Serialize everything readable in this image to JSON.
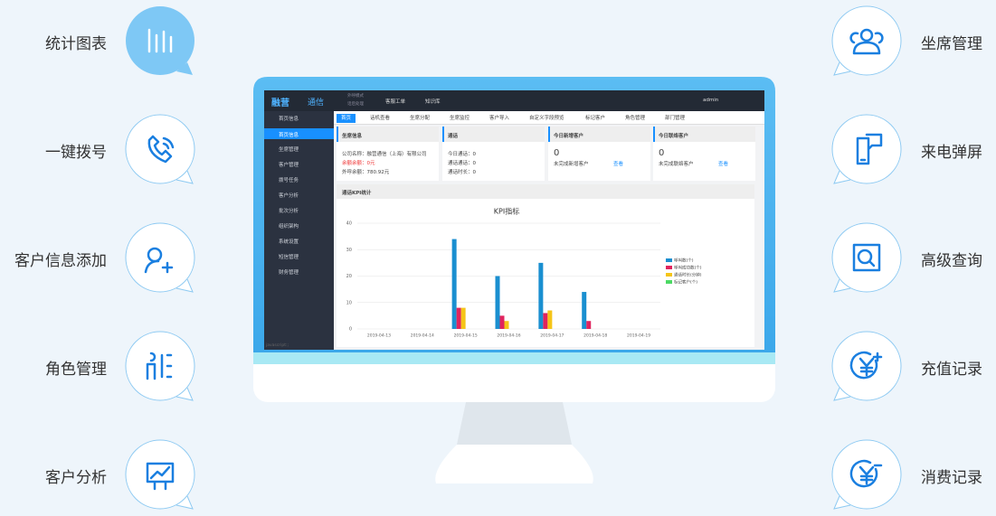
{
  "features_left": [
    "统计图表",
    "一键拨号",
    "客户信息添加",
    "角色管理",
    "客户分析"
  ],
  "features_right": [
    "坐席管理",
    "来电弹屏",
    "高级查询",
    "充值记录",
    "消费记录"
  ],
  "app": {
    "logo": "融营",
    "logo2": "通信",
    "mode": [
      "外呼模式",
      "话后处理"
    ],
    "nav": [
      "客服工单",
      "知识库"
    ],
    "user": "admin",
    "sidebar": [
      "首页信息",
      "坐席管理",
      "客户管理",
      "拨号任务",
      "客户分析",
      "批次分析",
      "组织架构",
      "系统设置",
      "短信管理",
      "财务管理"
    ],
    "submenu": "首页信息",
    "tabs": [
      "首页",
      "话机查看",
      "坐席分配",
      "坐席监控",
      "客户导入",
      "自定义字段预览",
      "标记客户",
      "角色管理",
      "部门管理"
    ],
    "cards": [
      {
        "title": "坐席信息",
        "lines": [
          "公司名称：融营通信（上海）有限公司",
          "余额余额：0元",
          "外呼余额：780.92元"
        ]
      },
      {
        "title": "通话",
        "lines": [
          "今日通话：0",
          "通话通话：0",
          "通话时长：0"
        ]
      },
      {
        "title": "今日新增客户",
        "value": 0,
        "note": "未完成新增客户",
        "link": "查看"
      },
      {
        "title": "今日联络客户",
        "value": 0,
        "note": "未完成联络客户",
        "link": "查看"
      }
    ],
    "section": "通话KPI统计",
    "footer": "javascript:;"
  },
  "chart_data": {
    "type": "bar",
    "title": "KPI指标",
    "categories": [
      "2019-04-13",
      "2019-04-14",
      "2019-04-15",
      "2019-04-16",
      "2019-04-17",
      "2019-04-18",
      "2019-04-19"
    ],
    "series": [
      {
        "name": "呼叫数(个)",
        "color": "#1a8fd0",
        "values": [
          0,
          0,
          34,
          20,
          25,
          14,
          0
        ]
      },
      {
        "name": "呼叫成功数(个)",
        "color": "#e0245e",
        "values": [
          0,
          0,
          8,
          5,
          6,
          3,
          0
        ]
      },
      {
        "name": "通话时长(分钟)",
        "color": "#f5c518",
        "values": [
          0,
          0,
          8,
          3,
          7,
          0,
          0
        ]
      },
      {
        "name": "标记客户(个)",
        "color": "#4cd964",
        "values": [
          0,
          0,
          0,
          0,
          0,
          0,
          0
        ]
      }
    ],
    "ylim": [
      0,
      40
    ],
    "yticks": [
      0,
      10,
      20,
      30,
      40
    ],
    "grid": true
  }
}
